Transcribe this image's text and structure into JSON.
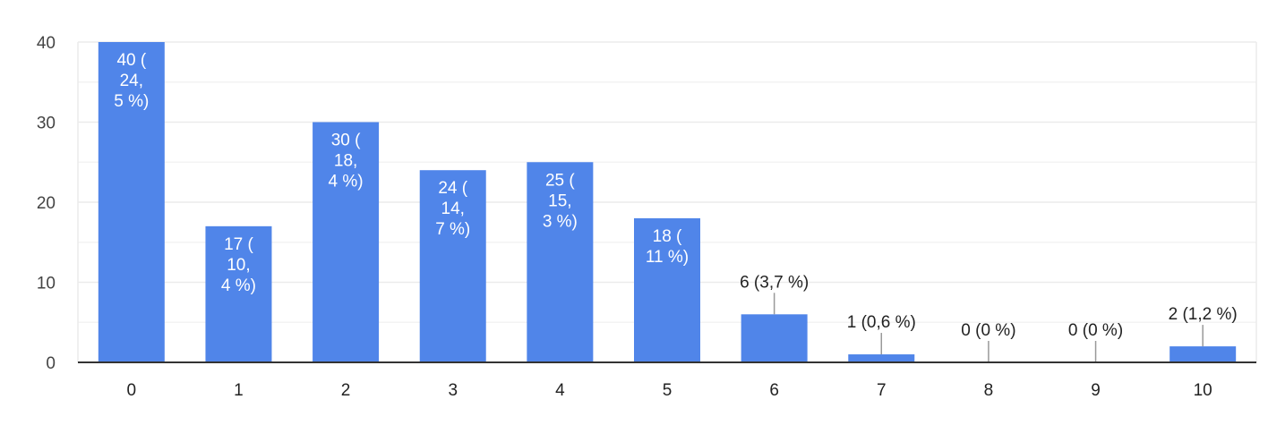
{
  "chart_data": {
    "type": "bar",
    "categories": [
      "0",
      "1",
      "2",
      "3",
      "4",
      "5",
      "6",
      "7",
      "8",
      "9",
      "10"
    ],
    "values": [
      40,
      17,
      30,
      24,
      25,
      18,
      6,
      1,
      0,
      0,
      2
    ],
    "data_labels": [
      [
        "40 (",
        "24,",
        "5 %)"
      ],
      [
        "17 (",
        "10,",
        "4 %)"
      ],
      [
        "30 (",
        "18,",
        "4 %)"
      ],
      [
        "24 (",
        "14,",
        "7 %)"
      ],
      [
        "25 (",
        "15,",
        "3 %)"
      ],
      [
        "18 (",
        "11 %)"
      ],
      [
        "6 (3,7 %)"
      ],
      [
        "1 (0,6 %)"
      ],
      [
        "0 (0 %)"
      ],
      [
        "0 (0 %)"
      ],
      [
        "2 (1,2 %)"
      ]
    ],
    "y_ticks": [
      "0",
      "10",
      "20",
      "30",
      "40"
    ],
    "ylim": [
      0,
      40
    ],
    "grid": true,
    "title": "",
    "xlabel": "",
    "ylabel": "",
    "bar_color": "#5085e9"
  }
}
